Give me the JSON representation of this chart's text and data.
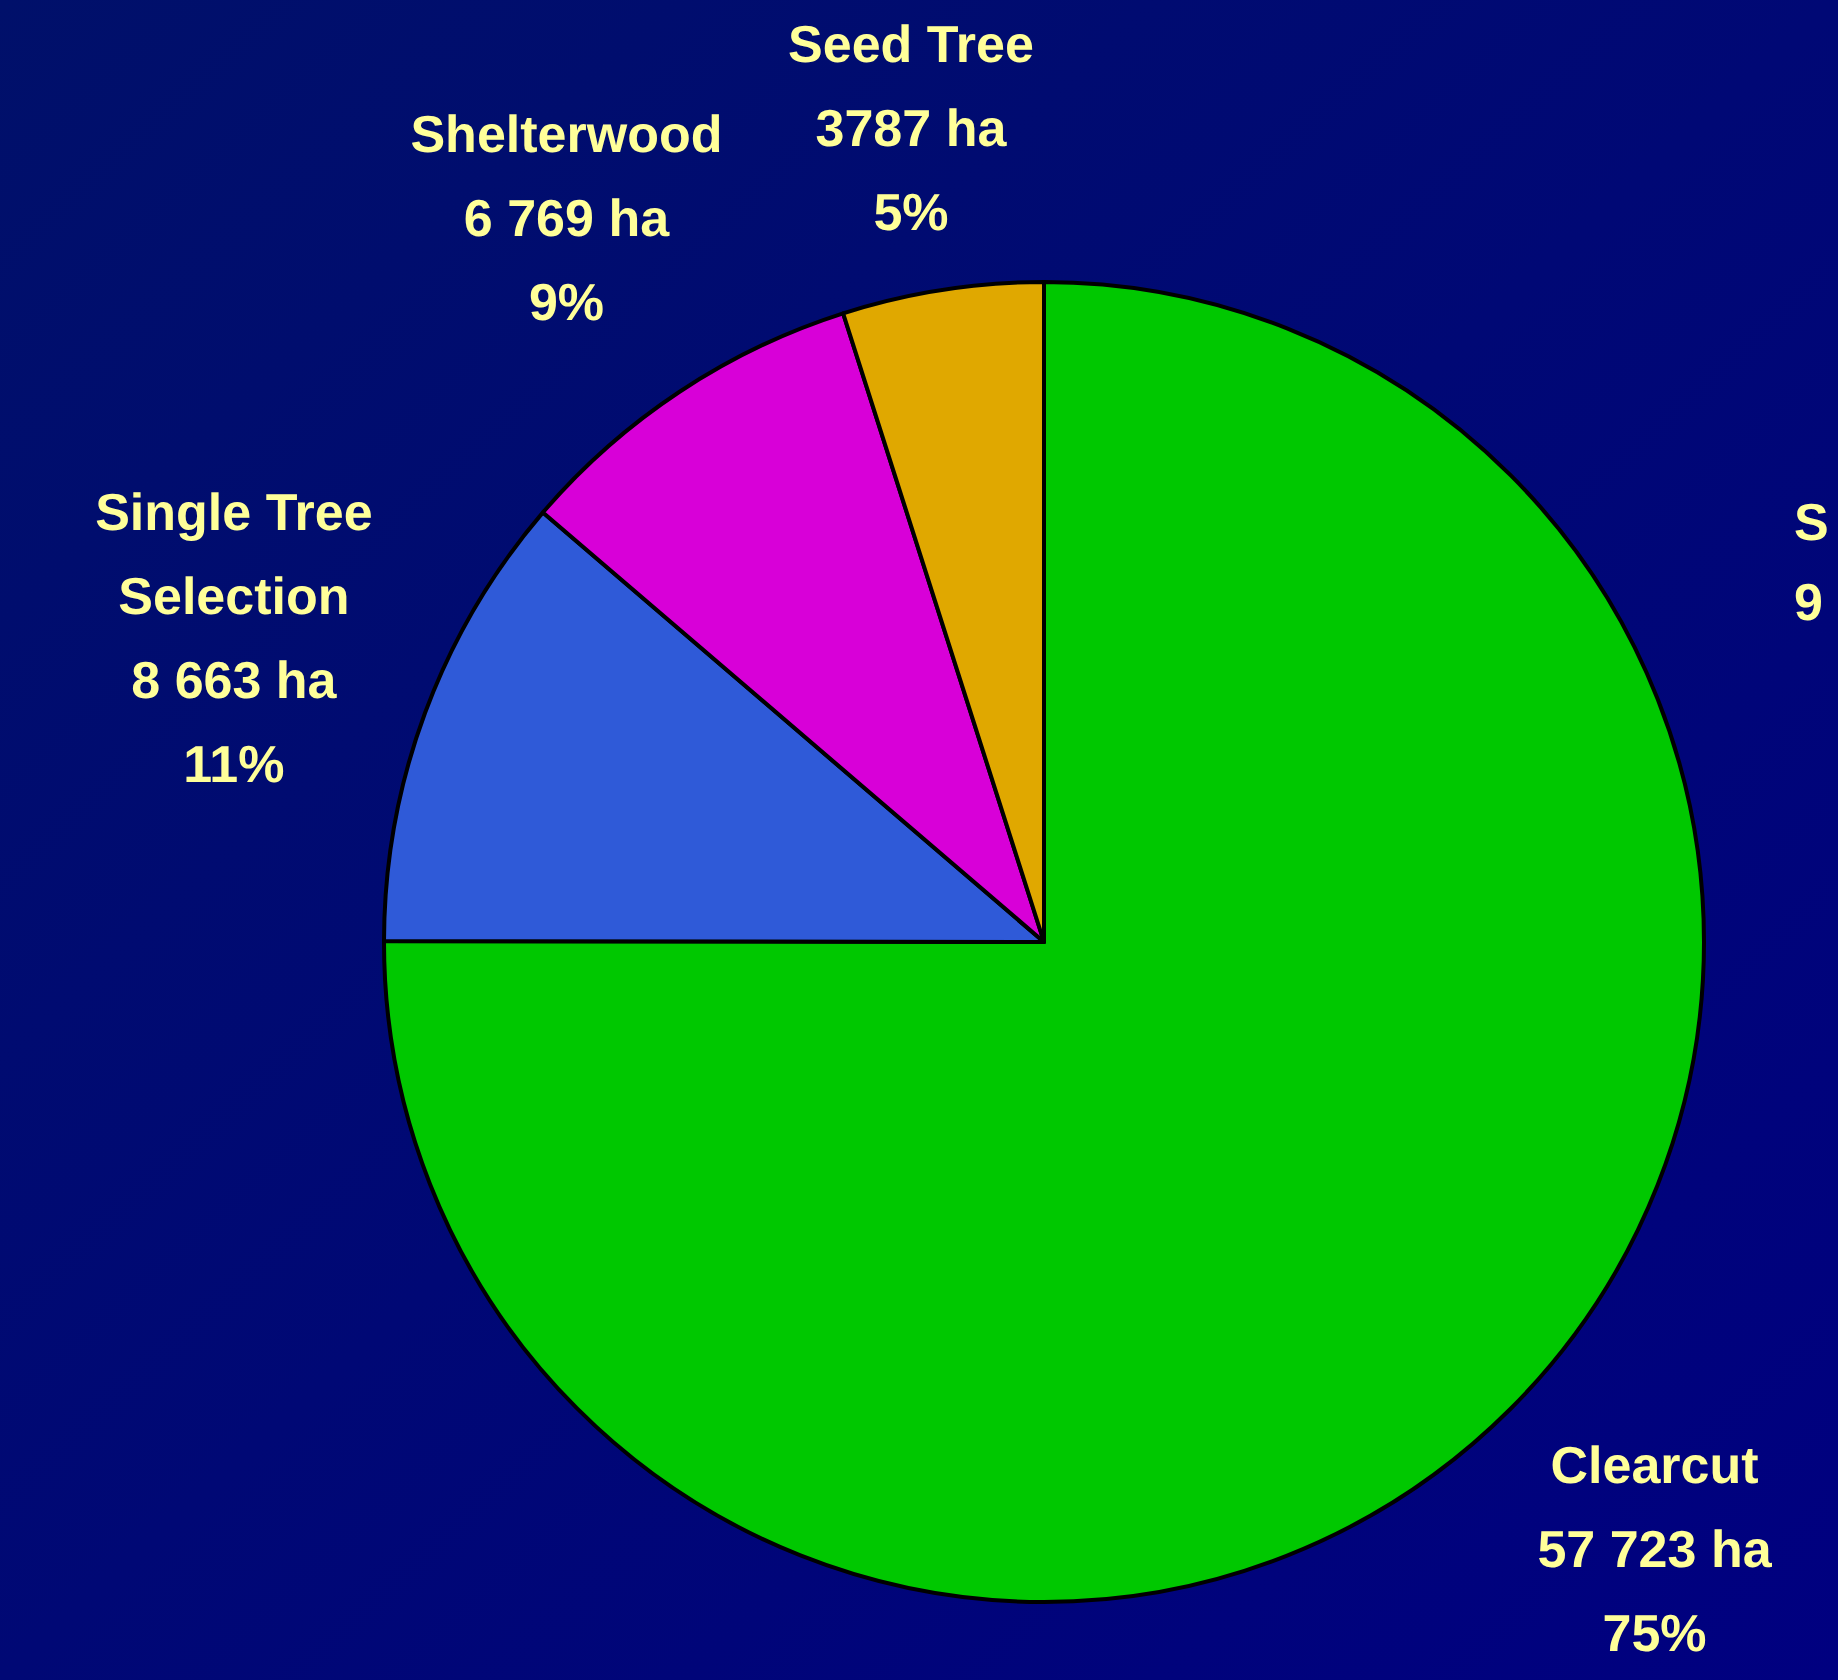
{
  "chart_data": {
    "type": "pie",
    "categories": [
      "Clearcut",
      "Single Tree Selection",
      "Shelterwood",
      "Seed Tree"
    ],
    "values": [
      57723,
      8663,
      6769,
      3787
    ],
    "value_labels": [
      "57 723 ha\n75%",
      "8 663 ha\n11%",
      "6 769 ha\n9%",
      "3787 ha\n5%"
    ],
    "colors": [
      "#00c800",
      "#2f5ad8",
      "#d800d8",
      "#e0a800"
    ],
    "annotations": [
      "S",
      "9"
    ]
  }
}
